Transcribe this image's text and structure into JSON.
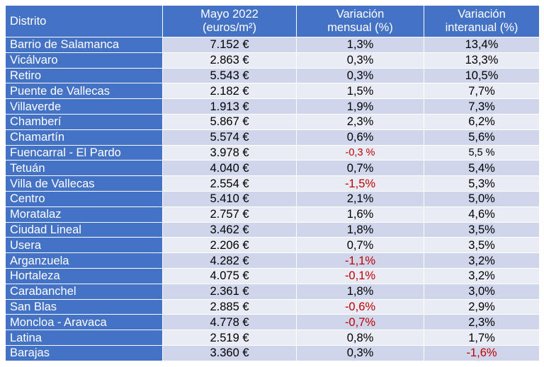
{
  "table": {
    "headers": {
      "district": "Distrito",
      "price": [
        "Mayo 2022",
        "(euros/m²)"
      ],
      "monthly": [
        "Variación",
        "mensual (%)"
      ],
      "yearly": [
        "Variación",
        "interanual (%)"
      ]
    },
    "rows": [
      {
        "district": "Barrio de Salamanca",
        "price": "7.152 €",
        "monthly": "1,3%",
        "yearly": "13,4%"
      },
      {
        "district": "Vicálvaro",
        "price": "2.863 €",
        "monthly": "0,3%",
        "yearly": "13,3%"
      },
      {
        "district": "Retiro",
        "price": "5.543 €",
        "monthly": "0,3%",
        "yearly": "10,5%"
      },
      {
        "district": "Puente de Vallecas",
        "price": "2.182 €",
        "monthly": "1,5%",
        "yearly": "7,7%"
      },
      {
        "district": "Villaverde",
        "price": "1.913 €",
        "monthly": "1,9%",
        "yearly": "7,3%"
      },
      {
        "district": "Chamberí",
        "price": "5.867 €",
        "monthly": "2,3%",
        "yearly": "6,2%"
      },
      {
        "district": "Chamartín",
        "price": "5.574 €",
        "monthly": "0,6%",
        "yearly": "5,6%"
      },
      {
        "district": "Fuencarral - El Pardo",
        "price": "3.978 €",
        "monthly": "-0,3 %",
        "yearly": "5,5 %"
      },
      {
        "district": "Tetuán",
        "price": "4.040 €",
        "monthly": "0,7%",
        "yearly": "5,4%"
      },
      {
        "district": "Villa de Vallecas",
        "price": "2.554 €",
        "monthly": "-1,5%",
        "yearly": "5,3%"
      },
      {
        "district": "Centro",
        "price": "5.410 €",
        "monthly": "2,1%",
        "yearly": "5,0%"
      },
      {
        "district": "Moratalaz",
        "price": "2.757 €",
        "monthly": "1,6%",
        "yearly": "4,6%"
      },
      {
        "district": "Ciudad Lineal",
        "price": "3.462 €",
        "monthly": "1,8%",
        "yearly": "3,5%"
      },
      {
        "district": "Usera",
        "price": "2.206 €",
        "monthly": "0,7%",
        "yearly": "3,5%"
      },
      {
        "district": "Arganzuela",
        "price": "4.282 €",
        "monthly": "-1,1%",
        "yearly": "3,2%"
      },
      {
        "district": "Hortaleza",
        "price": "4.075 €",
        "monthly": "-0,1%",
        "yearly": "3,2%"
      },
      {
        "district": "Carabanchel",
        "price": "2.361 €",
        "monthly": "1,8%",
        "yearly": "3,0%"
      },
      {
        "district": "San Blas",
        "price": "2.885 €",
        "monthly": "-0,6%",
        "yearly": "2,9%"
      },
      {
        "district": "Moncloa - Aravaca",
        "price": "4.778 €",
        "monthly": "-0,7%",
        "yearly": "2,3%"
      },
      {
        "district": "Latina",
        "price": "2.519 €",
        "monthly": "0,8%",
        "yearly": "1,7%"
      },
      {
        "district": "Barajas",
        "price": "3.360 €",
        "monthly": "0,3%",
        "yearly": "-1,6%"
      }
    ]
  },
  "colors": {
    "header_bg": "#4472c4",
    "row_dark": "#cfd5ea",
    "row_light": "#e9ebf5",
    "negative": "#c00000"
  }
}
